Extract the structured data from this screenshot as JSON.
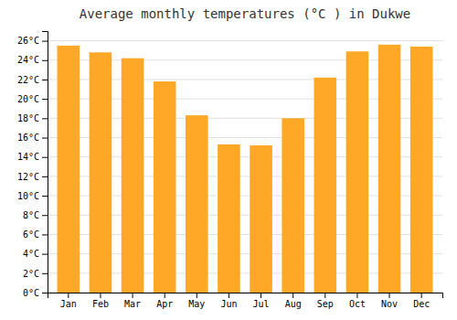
{
  "chart_data": {
    "type": "bar",
    "title": "Average monthly temperatures (°C ) in Dukwe",
    "categories": [
      "Jan",
      "Feb",
      "Mar",
      "Apr",
      "May",
      "Jun",
      "Jul",
      "Aug",
      "Sep",
      "Oct",
      "Nov",
      "Dec"
    ],
    "values": [
      25.5,
      24.8,
      24.2,
      21.8,
      18.3,
      15.3,
      15.2,
      18.0,
      22.2,
      24.9,
      25.6,
      25.4
    ],
    "color": "#FFA726",
    "ylim": [
      0,
      27
    ],
    "yticks": [
      {
        "value": 0,
        "label": "0°C"
      },
      {
        "value": 2,
        "label": "2°C"
      },
      {
        "value": 4,
        "label": "4°C"
      },
      {
        "value": 6,
        "label": "6°C"
      },
      {
        "value": 8,
        "label": "8°C"
      },
      {
        "value": 10,
        "label": "10°C"
      },
      {
        "value": 12,
        "label": "12°C"
      },
      {
        "value": 14,
        "label": "14°C"
      },
      {
        "value": 16,
        "label": "16°C"
      },
      {
        "value": 18,
        "label": "18°C"
      },
      {
        "value": 20,
        "label": "20°C"
      },
      {
        "value": 22,
        "label": "22°C"
      },
      {
        "value": 24,
        "label": "24°C"
      },
      {
        "value": 26,
        "label": "26°C"
      }
    ],
    "grid": true
  }
}
